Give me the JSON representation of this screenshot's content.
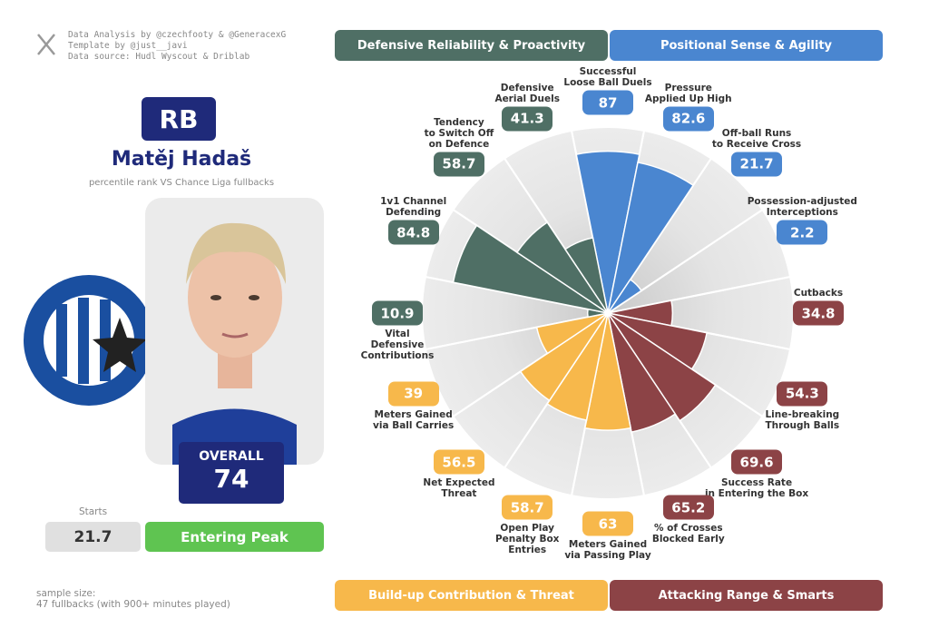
{
  "credits": [
    "Data Analysis by @czechfooty & @GeneracexG",
    "Template by @just__javi",
    "Data source: Hudl Wyscout & Driblab"
  ],
  "player": {
    "position": "RB",
    "name": "Matěj Hadaš",
    "subtitle": "percentile rank VS Chance Liga fullbacks",
    "overall_label": "OVERALL",
    "overall": 74,
    "starts_label": "Starts",
    "starts": 21.7,
    "status": "Entering Peak"
  },
  "sample_size": [
    "sample size:",
    "47 fullbacks (with 900+ minutes played)"
  ],
  "chart_data": {
    "type": "pizza",
    "ylim": [
      0,
      100
    ],
    "series": [
      {
        "name": "Positional Sense & Agility",
        "color": "#4a86d0",
        "categories": [
          "Successful\nLoose Ball Duels",
          "Pressure\nApplied Up High",
          "Off-ball Runs\nto Receive Cross",
          "Possession-adjusted\nInterceptions"
        ],
        "values": [
          87,
          82.6,
          21.7,
          2.2
        ]
      },
      {
        "name": "Attacking Range & Smarts",
        "color": "#8c4346",
        "categories": [
          "Cutbacks",
          "Line-breaking\nThrough Balls",
          "Success Rate\nin Entering the Box",
          "% of Crosses\nBlocked Early"
        ],
        "values": [
          34.8,
          54.3,
          69.6,
          65.2
        ]
      },
      {
        "name": "Build-up Contribution & Threat",
        "color": "#f7b84b",
        "categories": [
          "Meters Gained\nvia Passing Play",
          "Open Play\nPenalty Box\nEntries",
          "Net Expected\nThreat",
          "Meters Gained\nvia Ball Carries"
        ],
        "values": [
          63,
          58.7,
          56.5,
          39
        ]
      },
      {
        "name": "Defensive Reliability & Proactivity",
        "color": "#4f6f65",
        "categories": [
          "Vital\nDefensive\nContributions",
          "1v1 Channel\nDefending",
          "Tendency\nto Switch Off\non Defence",
          "Defensive\nAerial Duels"
        ],
        "values": [
          10.9,
          84.8,
          58.7,
          41.3
        ]
      }
    ]
  }
}
